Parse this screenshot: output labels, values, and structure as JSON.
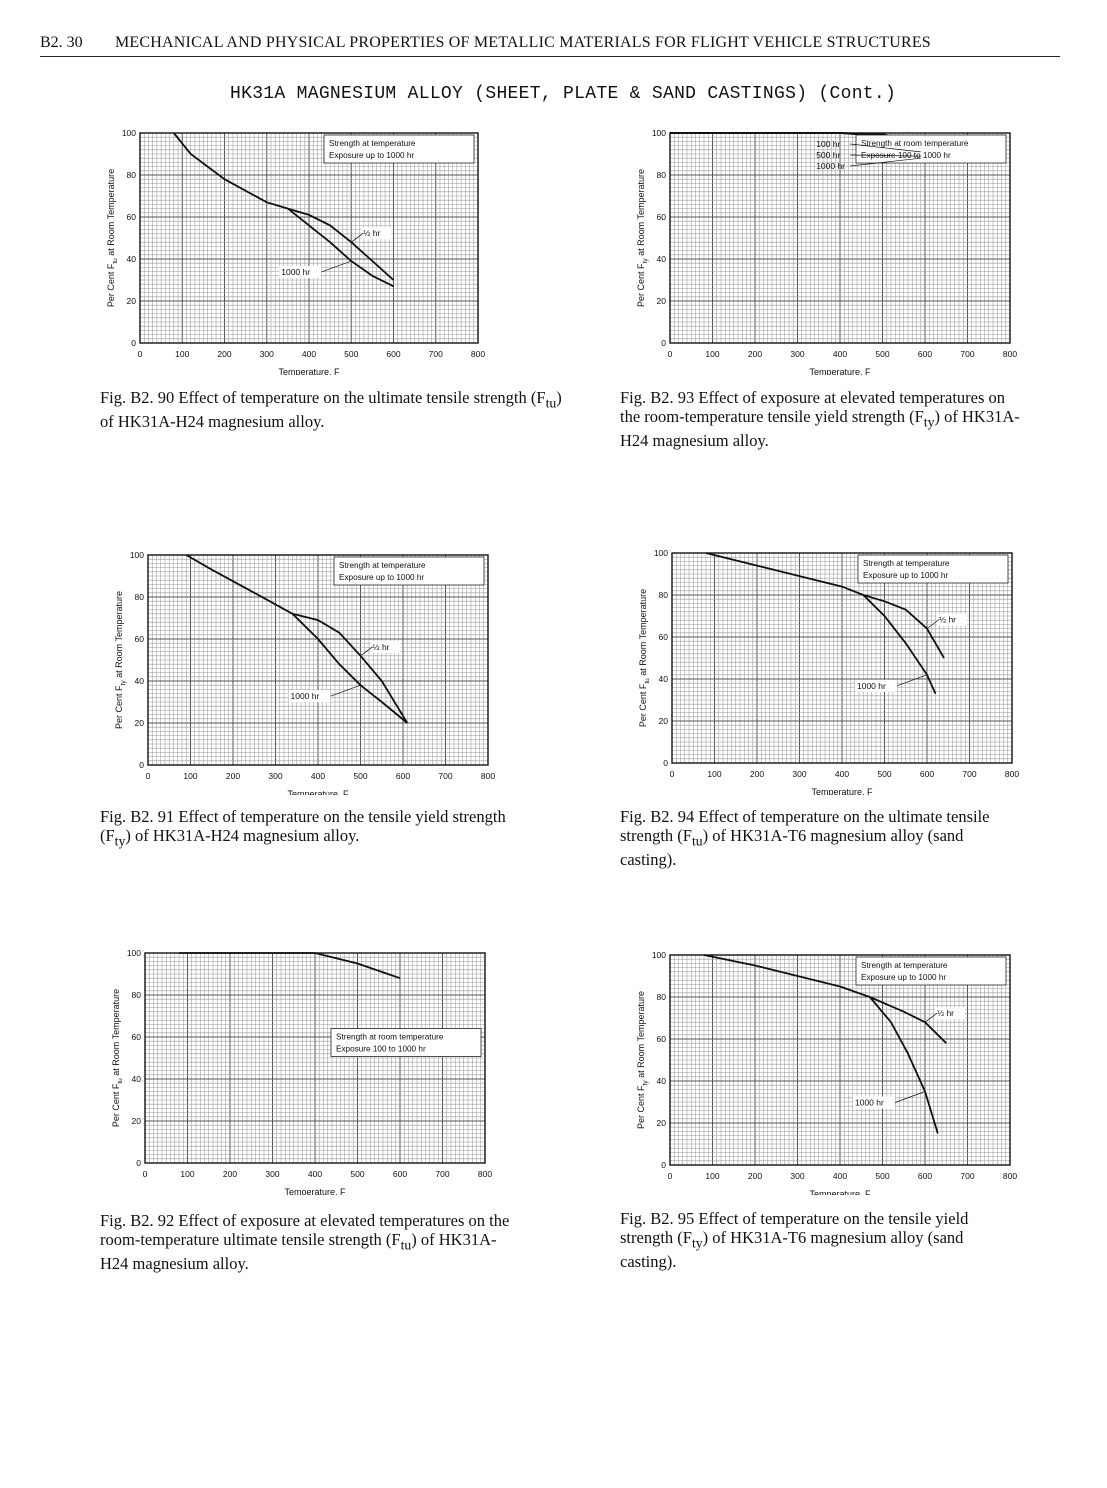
{
  "header": {
    "page_number": "B2. 30",
    "title": "MECHANICAL AND PHYSICAL PROPERTIES OF METALLIC MATERIALS FOR FLIGHT VEHICLE STRUCTURES"
  },
  "subtitle": "HK31A MAGNESIUM ALLOY (SHEET, PLATE & SAND CASTINGS) (Cont.)",
  "chart_data": [
    {
      "id": "b2-90",
      "type": "line",
      "ylabel_pre": "Per Cent F",
      "ylabel_sub": "tu",
      "ylabel_post": " at Room Temperature",
      "xlabel": "Temperature, F",
      "x_ticks": [
        "0",
        "100",
        "200",
        "300",
        "400",
        "500",
        "600",
        "700",
        "800"
      ],
      "y_ticks": [
        "0",
        "20",
        "40",
        "60",
        "80",
        "100"
      ],
      "xlim": [
        0,
        800
      ],
      "ylim": [
        0,
        100
      ],
      "legend": [
        "Strength at temperature",
        "Exposure up to 1000 hr"
      ],
      "legend_position": "top-right",
      "series": [
        {
          "name": "",
          "points": [
            [
              80,
              100
            ],
            [
              120,
              90
            ],
            [
              200,
              78
            ],
            [
              300,
              67
            ],
            [
              350,
              64
            ]
          ]
        },
        {
          "name": "½ hr",
          "points": [
            [
              350,
              64
            ],
            [
              400,
              61
            ],
            [
              450,
              56
            ],
            [
              500,
              48
            ],
            [
              550,
              39
            ],
            [
              600,
              30
            ]
          ]
        },
        {
          "name": "1000 hr",
          "points": [
            [
              350,
              64
            ],
            [
              400,
              56
            ],
            [
              450,
              48
            ],
            [
              500,
              39
            ],
            [
              550,
              32
            ],
            [
              600,
              27
            ]
          ]
        }
      ],
      "annotations": [
        "½ hr",
        "1000 hr"
      ],
      "caption": {
        "fig": "Fig. B2. 90",
        "text": "Effect of temperature on the ultimate tensile strength (F",
        "sub": "tu",
        "text_end": ") of HK31A-H24 magnesium alloy."
      }
    },
    {
      "id": "b2-93",
      "type": "line",
      "ylabel_pre": "Per Cent F",
      "ylabel_sub": "ty",
      "ylabel_post": " at Room Temperature",
      "xlabel": "Temperature, F",
      "x_ticks": [
        "0",
        "100",
        "200",
        "300",
        "400",
        "500",
        "600",
        "700",
        "800"
      ],
      "y_ticks": [
        "0",
        "20",
        "40",
        "60",
        "80",
        "100"
      ],
      "xlim": [
        0,
        800
      ],
      "ylim": [
        0,
        100
      ],
      "legend": [
        "Strength at room temperature",
        "Exposure 100 to 1000 hr"
      ],
      "legend_position": "top-right",
      "series": [
        {
          "name": "100 hr",
          "points": [
            [
              0,
              100
            ],
            [
              400,
              100
            ],
            [
              500,
              99.5
            ],
            [
              550,
              97
            ],
            [
              590,
              91
            ]
          ]
        },
        {
          "name": "500 hr",
          "points": [
            [
              0,
              100
            ],
            [
              400,
              100
            ],
            [
              500,
              99
            ],
            [
              550,
              95
            ],
            [
              590,
              89
            ]
          ]
        },
        {
          "name": "1000 hr",
          "points": [
            [
              0,
              100
            ],
            [
              400,
              100
            ],
            [
              500,
              98.5
            ],
            [
              550,
              93
            ],
            [
              590,
              88
            ]
          ]
        }
      ],
      "annotations": [
        "100 hr",
        "500 hr",
        "1000 hr"
      ],
      "caption": {
        "fig": "Fig. B2. 93",
        "text": "Effect of exposure at elevated temperatures on the room-temperature tensile yield strength (F",
        "sub": "ty",
        "text_end": ") of HK31A-H24 magnesium alloy."
      }
    },
    {
      "id": "b2-91",
      "type": "line",
      "ylabel_pre": "Per Cent F",
      "ylabel_sub": "ty",
      "ylabel_post": " at Room Temperature",
      "xlabel": "Temperature, F",
      "x_ticks": [
        "0",
        "100",
        "200",
        "300",
        "400",
        "500",
        "600",
        "700",
        "800"
      ],
      "y_ticks": [
        "0",
        "20",
        "40",
        "60",
        "80",
        "100"
      ],
      "xlim": [
        0,
        800
      ],
      "ylim": [
        0,
        100
      ],
      "legend": [
        "Strength at temperature",
        "Exposure up to 1000 hr"
      ],
      "legend_position": "top-right",
      "series": [
        {
          "name": "",
          "points": [
            [
              90,
              100
            ],
            [
              150,
              93
            ],
            [
              250,
              82
            ],
            [
              340,
              72
            ]
          ]
        },
        {
          "name": "½ hr",
          "points": [
            [
              340,
              72
            ],
            [
              400,
              69
            ],
            [
              450,
              63
            ],
            [
              500,
              52
            ],
            [
              550,
              40
            ],
            [
              610,
              20
            ]
          ]
        },
        {
          "name": "1000 hr",
          "points": [
            [
              340,
              72
            ],
            [
              400,
              60
            ],
            [
              450,
              48
            ],
            [
              500,
              38
            ],
            [
              550,
              30
            ],
            [
              610,
              20
            ]
          ]
        }
      ],
      "annotations": [
        "½ hr",
        "1000 hr"
      ],
      "caption": {
        "fig": "Fig. B2. 91",
        "text": "Effect of temperature on the tensile yield strength (F",
        "sub": "ty",
        "text_end": ") of HK31A-H24 magnesium alloy."
      }
    },
    {
      "id": "b2-94",
      "type": "line",
      "ylabel_pre": "Per Cent F",
      "ylabel_sub": "tu",
      "ylabel_post": " at Room Temperature",
      "xlabel": "Temperature, F",
      "x_ticks": [
        "0",
        "100",
        "200",
        "300",
        "400",
        "500",
        "600",
        "700",
        "800"
      ],
      "y_ticks": [
        "0",
        "20",
        "40",
        "60",
        "80",
        "100"
      ],
      "xlim": [
        0,
        800
      ],
      "ylim": [
        0,
        100
      ],
      "legend": [
        "Strength at temperature",
        "Exposure up to 1000 hr"
      ],
      "legend_position": "top-right",
      "series": [
        {
          "name": "",
          "points": [
            [
              80,
              100
            ],
            [
              200,
              94
            ],
            [
              300,
              89
            ],
            [
              400,
              84
            ],
            [
              450,
              80
            ]
          ]
        },
        {
          "name": "½ hr",
          "points": [
            [
              450,
              80
            ],
            [
              500,
              77
            ],
            [
              550,
              73
            ],
            [
              600,
              64
            ],
            [
              640,
              50
            ]
          ]
        },
        {
          "name": "1000 hr",
          "points": [
            [
              450,
              80
            ],
            [
              500,
              70
            ],
            [
              550,
              57
            ],
            [
              600,
              42
            ],
            [
              620,
              33
            ]
          ]
        }
      ],
      "annotations": [
        "½ hr",
        "1000 hr"
      ],
      "caption": {
        "fig": "Fig. B2. 94",
        "text": "Effect of temperature on the ultimate tensile strength (F",
        "sub": "tu",
        "text_end": ") of HK31A-T6 magnesium alloy (sand casting)."
      }
    },
    {
      "id": "b2-92",
      "type": "line",
      "ylabel_pre": "Per Cent F",
      "ylabel_sub": "tu",
      "ylabel_post": " at Room Temperature",
      "xlabel": "Temoerature, F",
      "x_ticks": [
        "0",
        "100",
        "200",
        "300",
        "400",
        "500",
        "600",
        "700",
        "800"
      ],
      "y_ticks": [
        "0",
        "20",
        "40",
        "60",
        "80",
        "100"
      ],
      "xlim": [
        0,
        800
      ],
      "ylim": [
        0,
        100
      ],
      "legend": [
        "Strength at room temperature",
        "Exposure 100 to 1000 hr"
      ],
      "legend_position": "middle-right",
      "series": [
        {
          "name": "",
          "points": [
            [
              80,
              100
            ],
            [
              400,
              100
            ],
            [
              500,
              95
            ],
            [
              600,
              88
            ]
          ]
        }
      ],
      "annotations": [],
      "caption": {
        "fig": "Fig. B2. 92",
        "text": "Effect of exposure at elevated temperatures on the room-temperature ultimate tensile strength (F",
        "sub": "tu",
        "text_end": ") of HK31A-H24 magnesium alloy."
      }
    },
    {
      "id": "b2-95",
      "type": "line",
      "ylabel_pre": "Per Cent F",
      "ylabel_sub": "ty",
      "ylabel_post": " at Room Temperature",
      "xlabel": "Temperature, F",
      "x_ticks": [
        "0",
        "100",
        "200",
        "300",
        "400",
        "500",
        "600",
        "700",
        "800"
      ],
      "y_ticks": [
        "0",
        "20",
        "40",
        "60",
        "80",
        "100"
      ],
      "xlim": [
        0,
        800
      ],
      "ylim": [
        0,
        100
      ],
      "legend": [
        "Strength at temperature",
        "Exposure up to 1000 hr"
      ],
      "legend_position": "top-right",
      "series": [
        {
          "name": "",
          "points": [
            [
              80,
              100
            ],
            [
              200,
              95
            ],
            [
              300,
              90
            ],
            [
              400,
              85
            ],
            [
              470,
              80
            ]
          ]
        },
        {
          "name": "½ hr",
          "points": [
            [
              470,
              80
            ],
            [
              550,
              73
            ],
            [
              600,
              68
            ],
            [
              650,
              58
            ]
          ]
        },
        {
          "name": "1000 hr",
          "points": [
            [
              470,
              80
            ],
            [
              520,
              68
            ],
            [
              560,
              53
            ],
            [
              600,
              35
            ],
            [
              630,
              15
            ]
          ]
        }
      ],
      "annotations": [
        "½ hr",
        "1000 hr"
      ],
      "caption": {
        "fig": "Fig. B2. 95",
        "text": "Effect of temperature on the tensile yield strength (F",
        "sub": "ty",
        "text_end": ") of HK31A-T6 magnesium alloy (sand casting)."
      }
    }
  ]
}
